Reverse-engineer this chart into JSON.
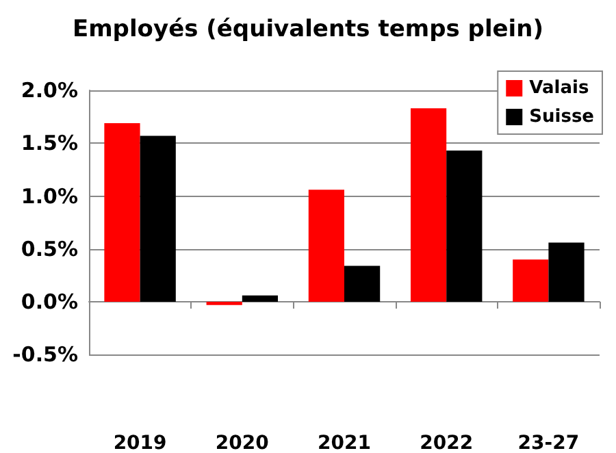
{
  "chart_data": {
    "type": "bar",
    "title": "Employés (équivalents temps plein)",
    "categories": [
      "2019",
      "2020",
      "2021",
      "2022",
      "23-27"
    ],
    "series": [
      {
        "name": "Valais",
        "color": "#ff0000",
        "values": [
          1.69,
          -0.03,
          1.06,
          1.83,
          0.4
        ]
      },
      {
        "name": "Suisse",
        "color": "#000000",
        "values": [
          1.57,
          0.06,
          0.34,
          1.43,
          0.56
        ]
      }
    ],
    "ylim": [
      -0.5,
      2.0
    ],
    "yticks": [
      {
        "value": -0.5,
        "label": "-0.5%"
      },
      {
        "value": 0,
        "label": "0.0%"
      },
      {
        "value": 0.5,
        "label": "0.5%"
      },
      {
        "value": 1.0,
        "label": "1.0%"
      },
      {
        "value": 1.5,
        "label": "1.5%"
      },
      {
        "value": 2.0,
        "label": "2.0%"
      }
    ],
    "grid": "y",
    "legend": "top right"
  }
}
